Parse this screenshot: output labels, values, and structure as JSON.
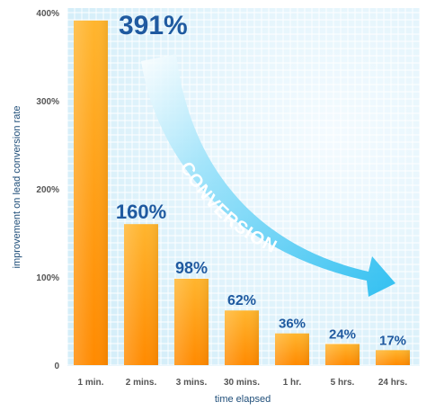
{
  "chart_data": {
    "type": "bar",
    "categories": [
      "1 min.",
      "2 mins.",
      "3 mins.",
      "30 mins.",
      "1 hr.",
      "5 hrs.",
      "24 hrs."
    ],
    "values": [
      391,
      160,
      98,
      62,
      36,
      24,
      17
    ],
    "data_labels": [
      "391%",
      "160%",
      "98%",
      "62%",
      "36%",
      "24%",
      "17%"
    ],
    "ylim": [
      0,
      400
    ],
    "yticks": [
      "0",
      "100%",
      "200%",
      "300%",
      "400%"
    ],
    "ylabel": "improvement on lead conversion rate",
    "xlabel": "time elapsed",
    "annotation": "CONVERSION",
    "grid": true,
    "colors": {
      "bar_top": "#ffb52e",
      "bar_bottom": "#ff8a00",
      "grid_bg": "#e3f4fc",
      "grid_line": "#ffffff",
      "arrow": "#3ec8f4",
      "label": "#1f5aa0"
    }
  }
}
